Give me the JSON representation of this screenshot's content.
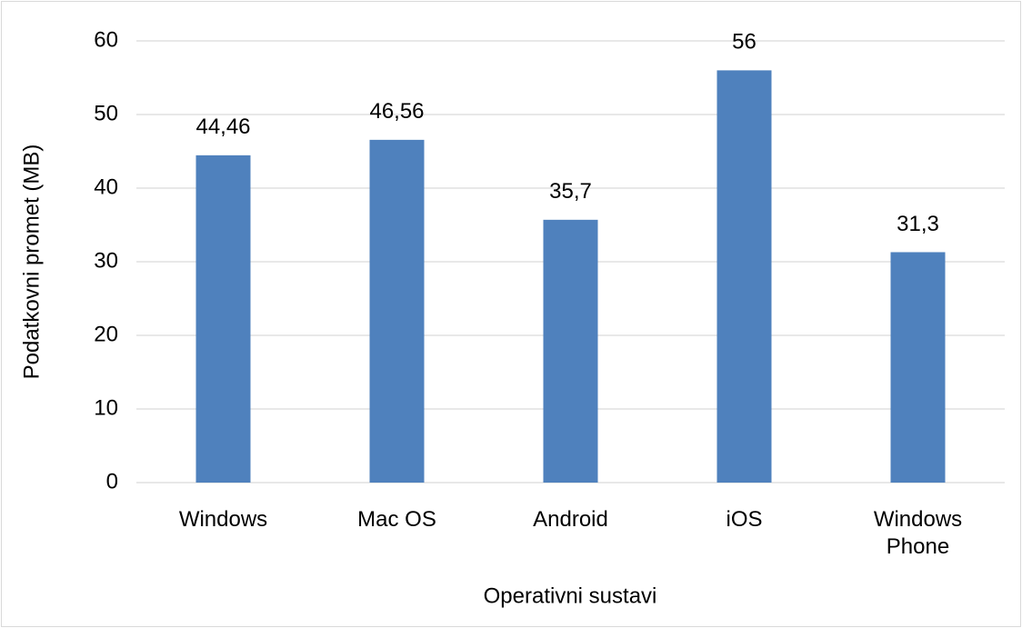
{
  "chart_data": {
    "type": "bar",
    "categories": [
      "Windows",
      "Mac OS",
      "Android",
      "iOS",
      "Windows Phone"
    ],
    "values": [
      44.46,
      46.56,
      35.7,
      56,
      31.3
    ],
    "value_labels": [
      "44,46",
      "46,56",
      "35,7",
      "56",
      "31,3"
    ],
    "color": "#4f81bd",
    "ylim": [
      0,
      60
    ],
    "yticks": [
      0,
      10,
      20,
      30,
      40,
      50,
      60
    ],
    "grid": true,
    "y_label": "Podatkovni promet (MB)",
    "x_label": "Operativni sustavi"
  }
}
